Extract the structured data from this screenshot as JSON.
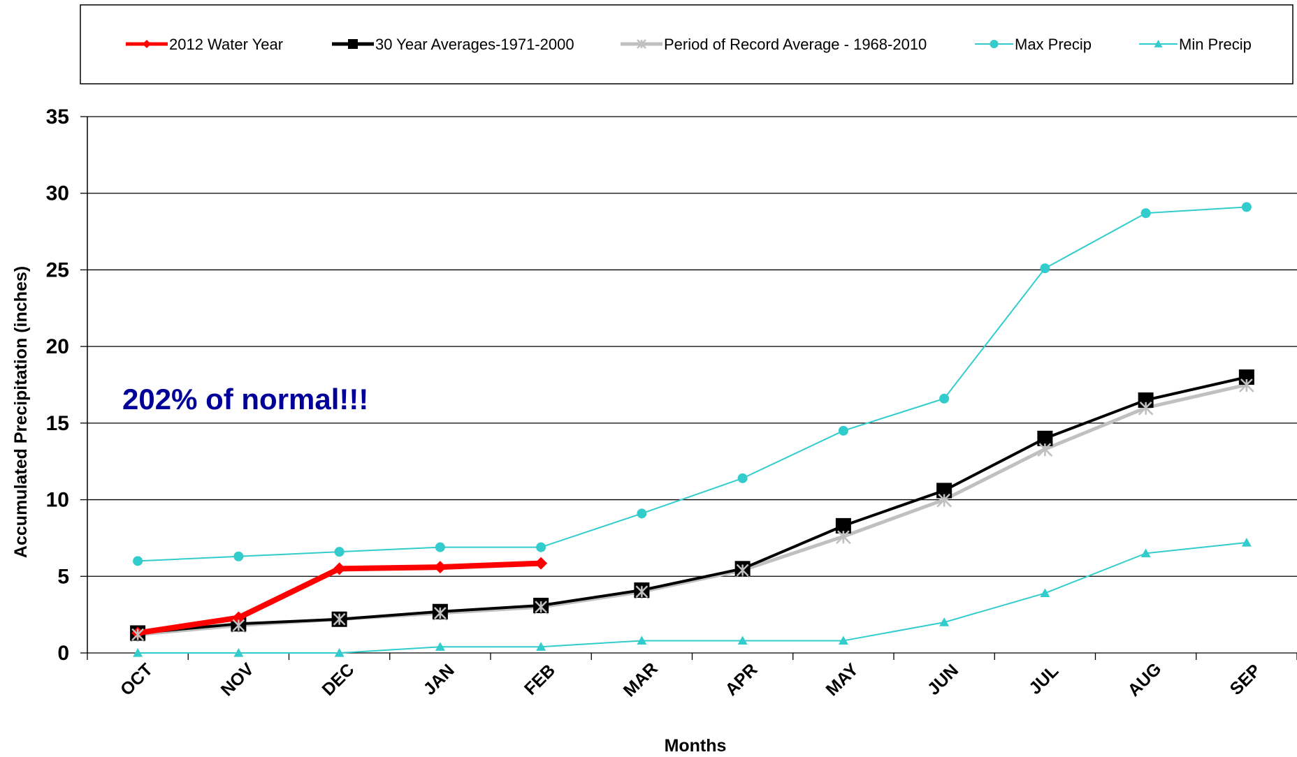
{
  "chart_data": {
    "type": "line",
    "xlabel": "Months",
    "ylabel": "Accumulated  Precipitation  (inches)",
    "ylim": [
      0,
      35
    ],
    "yticks": [
      0,
      5,
      10,
      15,
      20,
      25,
      30,
      35
    ],
    "categories": [
      "OCT",
      "NOV",
      "DEC",
      "JAN",
      "FEB",
      "MAR",
      "APR",
      "MAY",
      "JUN",
      "JUL",
      "AUG",
      "SEP"
    ],
    "grid": "horizontal",
    "legend_position": "top",
    "annotation": "202% of normal!!!",
    "annotation_color": "#000099",
    "series": [
      {
        "name": "2012 Water Year",
        "color": "#ff0000",
        "marker": "diamond",
        "values": [
          1.3,
          2.3,
          5.5,
          5.6,
          5.85,
          null,
          null,
          null,
          null,
          null,
          null,
          null
        ]
      },
      {
        "name": "30 Year Averages-1971-2000",
        "color": "#000000",
        "marker": "square",
        "values": [
          1.3,
          1.9,
          2.2,
          2.7,
          3.1,
          4.1,
          5.5,
          8.3,
          10.6,
          14.0,
          16.5,
          18.0
        ]
      },
      {
        "name": "Period of Record Average - 1968-2010",
        "color": "#c0c0c0",
        "marker": "star",
        "values": [
          1.2,
          1.8,
          2.2,
          2.6,
          3.0,
          4.0,
          5.4,
          7.6,
          10.0,
          13.3,
          16.0,
          17.5
        ]
      },
      {
        "name": "Max Precip",
        "color": "#33cccc",
        "marker": "circle",
        "values": [
          6.0,
          6.3,
          6.6,
          6.9,
          6.9,
          9.1,
          11.4,
          14.5,
          16.6,
          25.1,
          28.7,
          29.1
        ]
      },
      {
        "name": "Min Precip",
        "color": "#33cccc",
        "marker": "triangle",
        "values": [
          0.0,
          0.0,
          0.0,
          0.4,
          0.4,
          0.8,
          0.8,
          0.8,
          2.0,
          3.9,
          6.5,
          7.2
        ]
      }
    ]
  }
}
